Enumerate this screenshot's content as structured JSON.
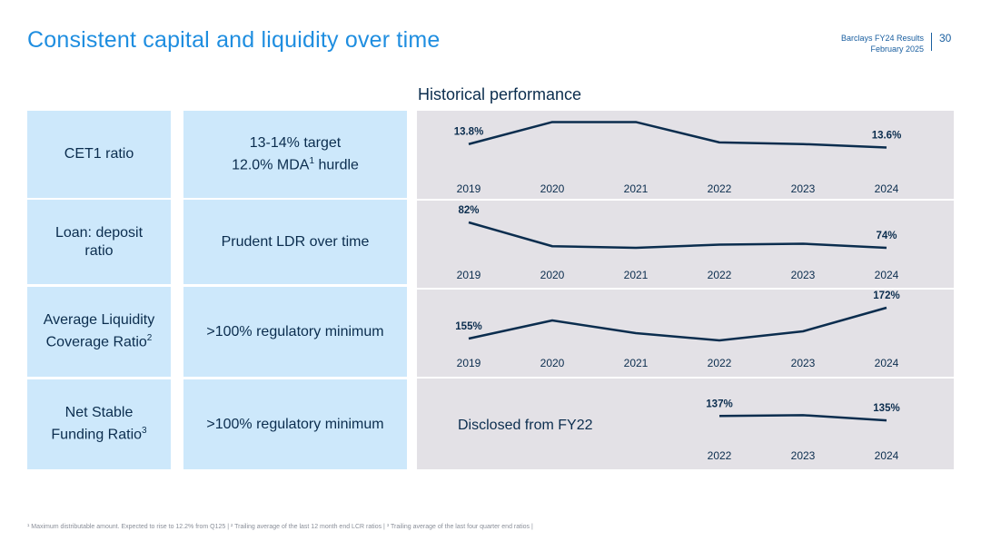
{
  "header": {
    "title": "Consistent capital and liquidity over time",
    "brand_line1": "Barclays FY24 Results",
    "brand_line2": "February 2025",
    "page_number": "30"
  },
  "section_title": "Historical performance",
  "rows": [
    {
      "metric": "CET1 ratio",
      "target_line1": "13-14% target",
      "target_line2_pre": "12.0% MDA",
      "target_line2_sup": "1",
      "target_line2_post": " hurdle"
    },
    {
      "metric_line1": "Loan: deposit",
      "metric_line2": "ratio",
      "target": "Prudent LDR over time"
    },
    {
      "metric_line1": "Average Liquidity",
      "metric_line2_pre": "Coverage Ratio",
      "metric_line2_sup": "2",
      "target": ">100% regulatory minimum"
    },
    {
      "metric_line1": "Net Stable",
      "metric_line2_pre": "Funding Ratio",
      "metric_line2_sup": "3",
      "target": ">100% regulatory minimum",
      "note": "Disclosed from FY22"
    }
  ],
  "chart_data": [
    {
      "type": "line",
      "x": [
        "2019",
        "2020",
        "2021",
        "2022",
        "2023",
        "2024"
      ],
      "values": [
        13.8,
        15.1,
        15.1,
        13.9,
        13.8,
        13.6
      ],
      "labels": [
        {
          "index": 0,
          "text": "13.8%"
        },
        {
          "index": 5,
          "text": "13.6%"
        }
      ],
      "ylim": [
        12.5,
        15.5
      ],
      "color": "#0b2d4e"
    },
    {
      "type": "line",
      "x": [
        "2019",
        "2020",
        "2021",
        "2022",
        "2023",
        "2024"
      ],
      "values": [
        82,
        74.5,
        74,
        75,
        75.3,
        74
      ],
      "labels": [
        {
          "index": 0,
          "text": "82%"
        },
        {
          "index": 5,
          "text": "74%"
        }
      ],
      "ylim": [
        70,
        86
      ],
      "color": "#0b2d4e"
    },
    {
      "type": "line",
      "x": [
        "2019",
        "2020",
        "2021",
        "2022",
        "2023",
        "2024"
      ],
      "values": [
        155,
        165,
        158,
        154,
        159,
        172
      ],
      "labels": [
        {
          "index": 0,
          "text": "155%"
        },
        {
          "index": 5,
          "text": "172%"
        }
      ],
      "ylim": [
        145,
        180
      ],
      "color": "#0b2d4e"
    },
    {
      "type": "line",
      "x": [
        "2022",
        "2023",
        "2024"
      ],
      "values": [
        137,
        137.4,
        135
      ],
      "labels": [
        {
          "index": 0,
          "text": "137%"
        },
        {
          "index": 2,
          "text": "135%"
        }
      ],
      "ylim": [
        128,
        145
      ],
      "color": "#0b2d4e"
    }
  ],
  "footnote": "¹ Maximum distributable amount. Expected to rise to 12.2% from Q125 | ² Trailing average of the last 12 month end LCR ratios | ³ Trailing average of the last four quarter end ratios |"
}
